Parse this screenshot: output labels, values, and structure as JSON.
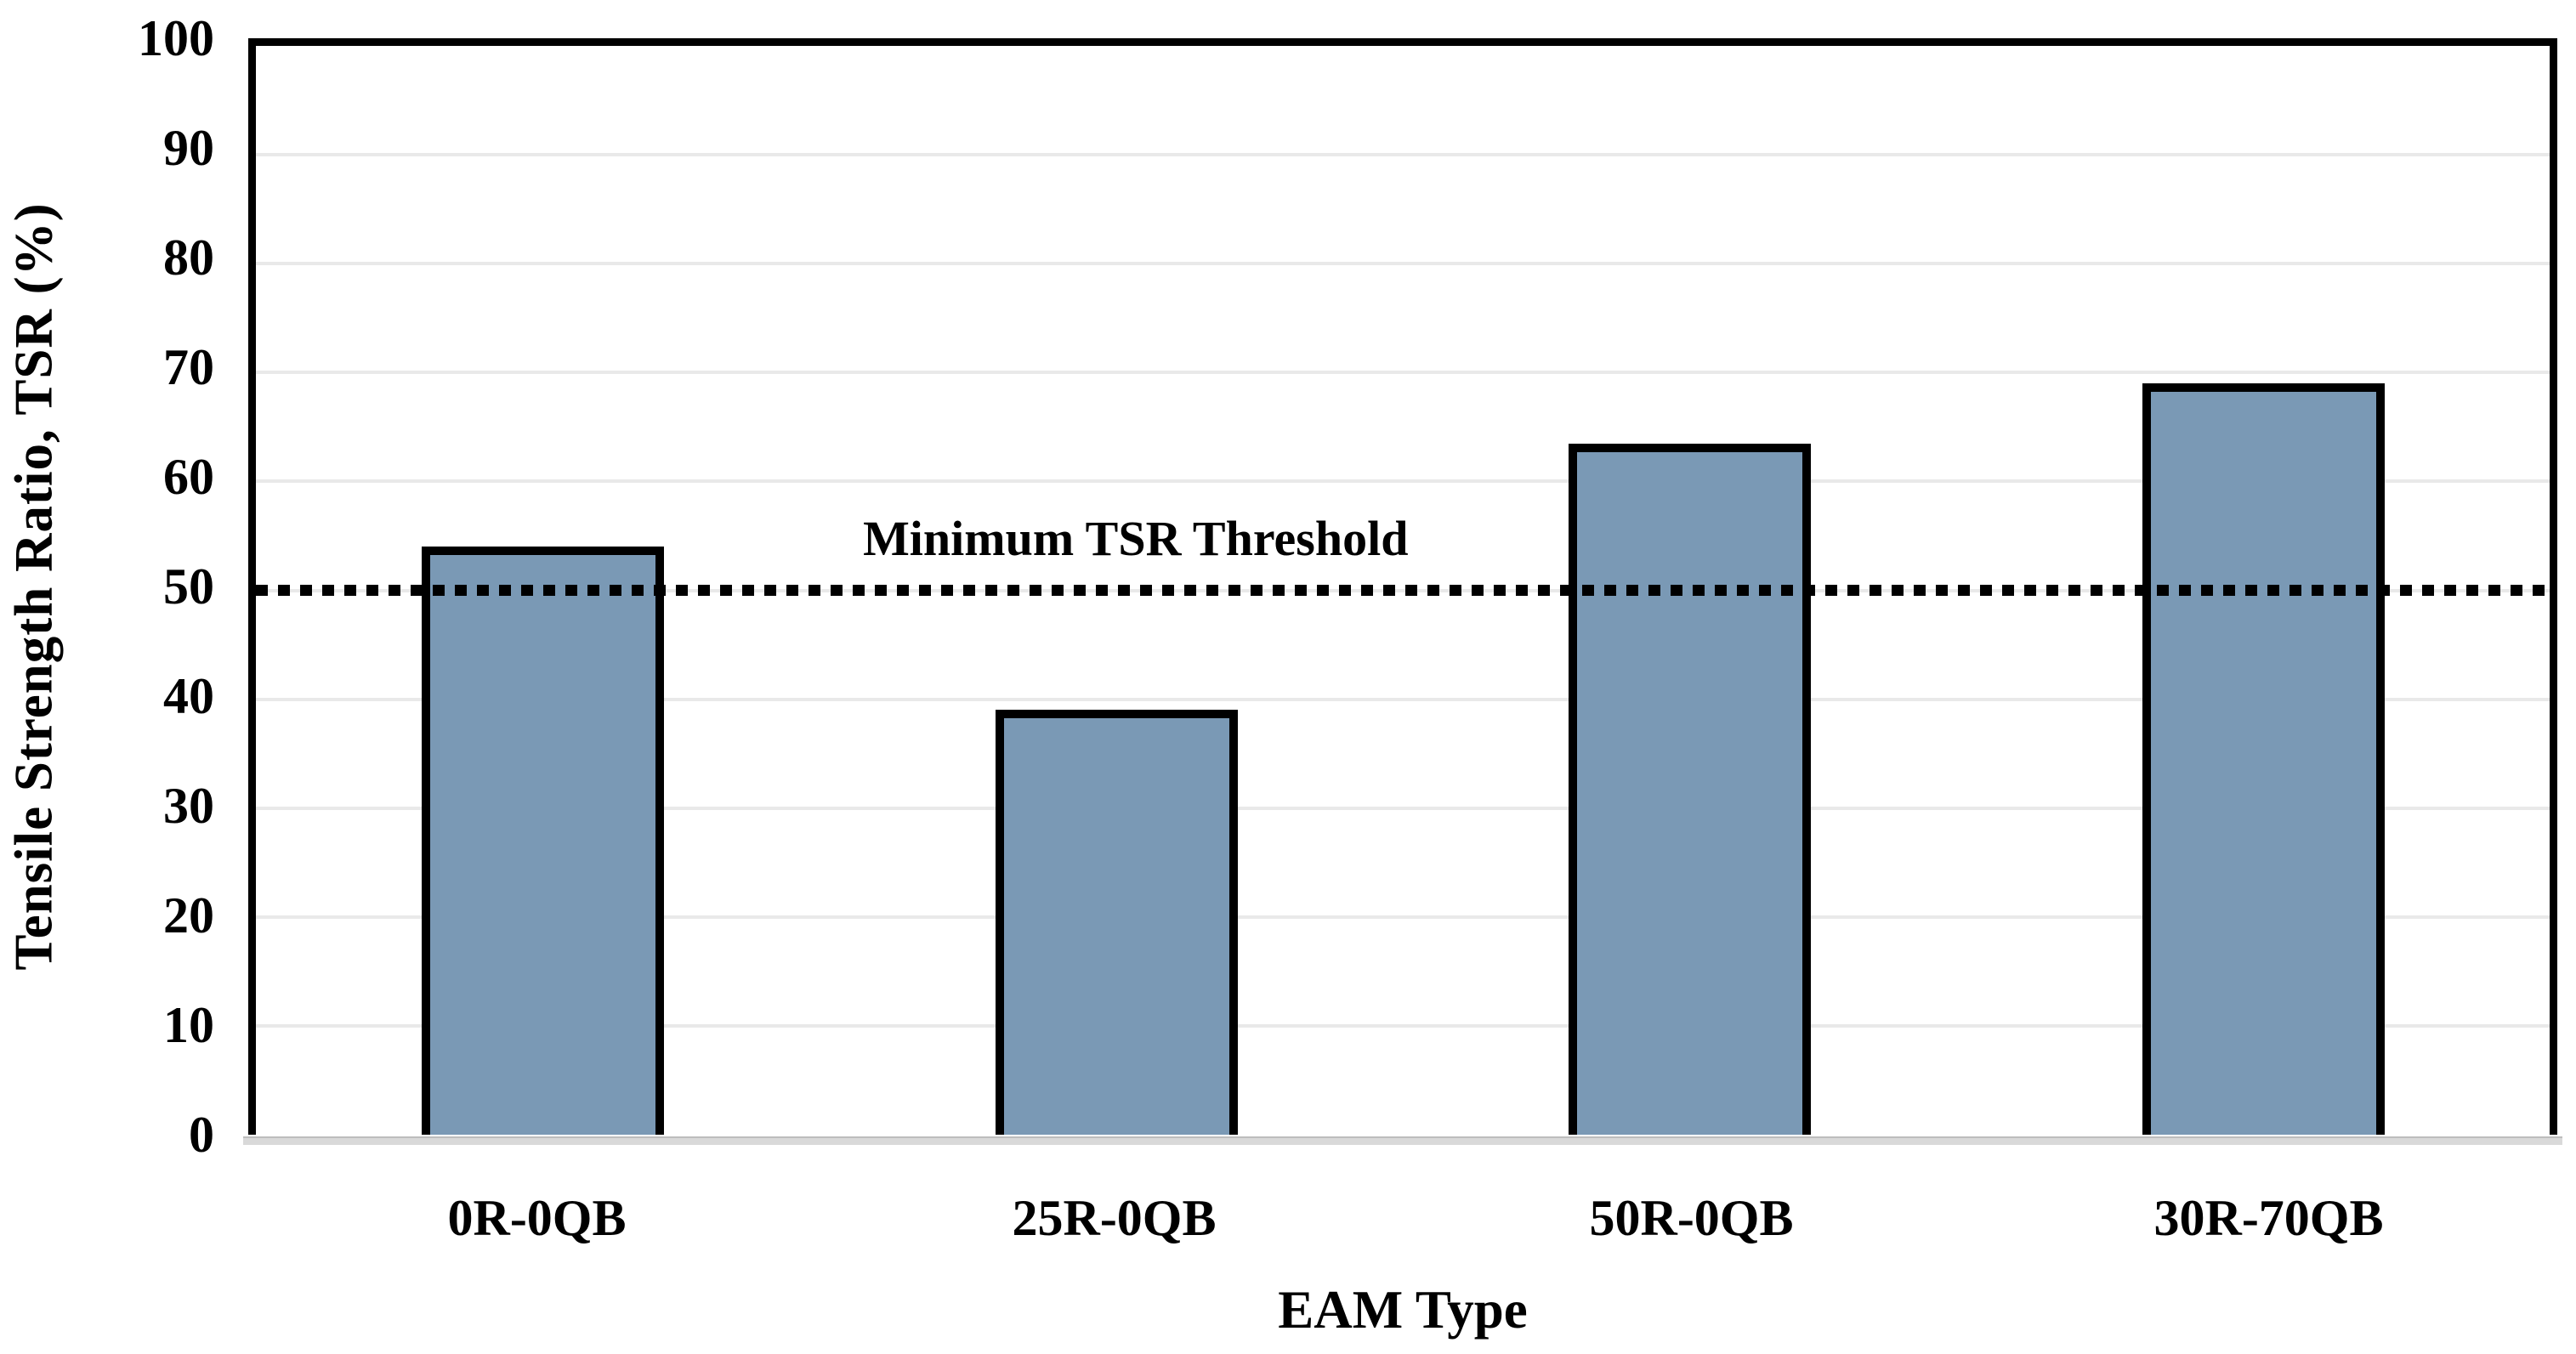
{
  "chart_data": {
    "type": "bar",
    "title": "",
    "categories": [
      "0R-0QB",
      "25R-0QB",
      "50R-0QB",
      "30R-70QB"
    ],
    "values": [
      54,
      39,
      63.5,
      69
    ],
    "xlabel": "EAM Type",
    "ylabel": "Tensile Strength Ratio, TSR (%)",
    "ylim": [
      0,
      100
    ],
    "yticks": [
      0,
      10,
      20,
      30,
      40,
      50,
      60,
      70,
      80,
      90,
      100
    ],
    "grid": "horizontal",
    "legend": "none",
    "threshold": {
      "value": 50,
      "label": "Minimum TSR Threshold",
      "line_style": "dotted",
      "color": "#000000"
    }
  },
  "colors": {
    "bar_fill": "#7A99B5",
    "bar_border": "#000000",
    "gridline": "#E9E9E9",
    "plot_border": "#000000",
    "axis_line": "#D9D9D9",
    "threshold_line": "#000000",
    "text": "#000000",
    "background": "#FFFFFF"
  }
}
